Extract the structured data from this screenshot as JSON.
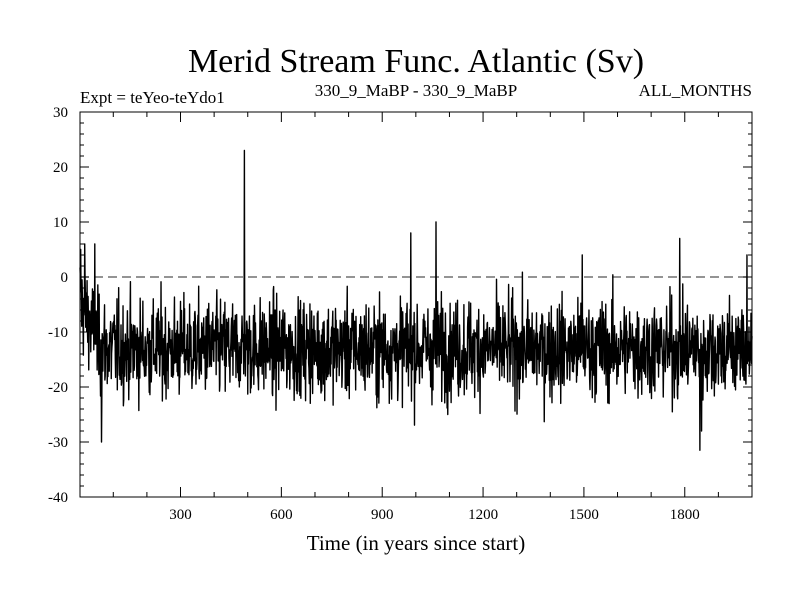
{
  "chart_data": {
    "type": "line",
    "title": "Merid Stream Func. Atlantic (Sv)",
    "subtitle_left": "Expt = teYeo-teYdo1",
    "subtitle_center": "330_9_MaBP - 330_9_MaBP",
    "subtitle_right": "ALL_MONTHS",
    "xlabel": "Time (in years since start)",
    "ylabel": "",
    "xlim": [
      1,
      2000
    ],
    "ylim": [
      -40,
      30
    ],
    "xticks": [
      300,
      600,
      900,
      1200,
      1500,
      1800
    ],
    "xtick_labels": [
      "300",
      "600",
      "900",
      "1200",
      "1500",
      "1800"
    ],
    "xminor_step": 100,
    "yticks": [
      30,
      20,
      10,
      0,
      -10,
      -20,
      -30,
      -40
    ],
    "ytick_labels": [
      "30",
      "20",
      "10",
      "0",
      "-10",
      "-20",
      "-30",
      "-40"
    ],
    "yminor_step": 2,
    "reference_line": {
      "y": 0,
      "style": "dashed"
    },
    "series": [
      {
        "name": "Merid Stream Func. Atlantic",
        "description": "noisy annual time series, mean about -13 Sv, typical range -25 to -2 Sv",
        "x_start": 1,
        "x_step": 1,
        "n_points": 2000,
        "mean": -13,
        "noise_std": 5.5,
        "spikes": [
          {
            "x": 3,
            "value": 5
          },
          {
            "x": 15,
            "value": 6
          },
          {
            "x": 45,
            "value": 6
          },
          {
            "x": 65,
            "value": -30
          },
          {
            "x": 490,
            "value": 23
          },
          {
            "x": 985,
            "value": 8
          },
          {
            "x": 1060,
            "value": 10
          },
          {
            "x": 1495,
            "value": 4
          },
          {
            "x": 1785,
            "value": 7
          },
          {
            "x": 1845,
            "value": -31.5
          },
          {
            "x": 1850,
            "value": -28
          },
          {
            "x": 1985,
            "value": 4
          }
        ]
      }
    ]
  }
}
